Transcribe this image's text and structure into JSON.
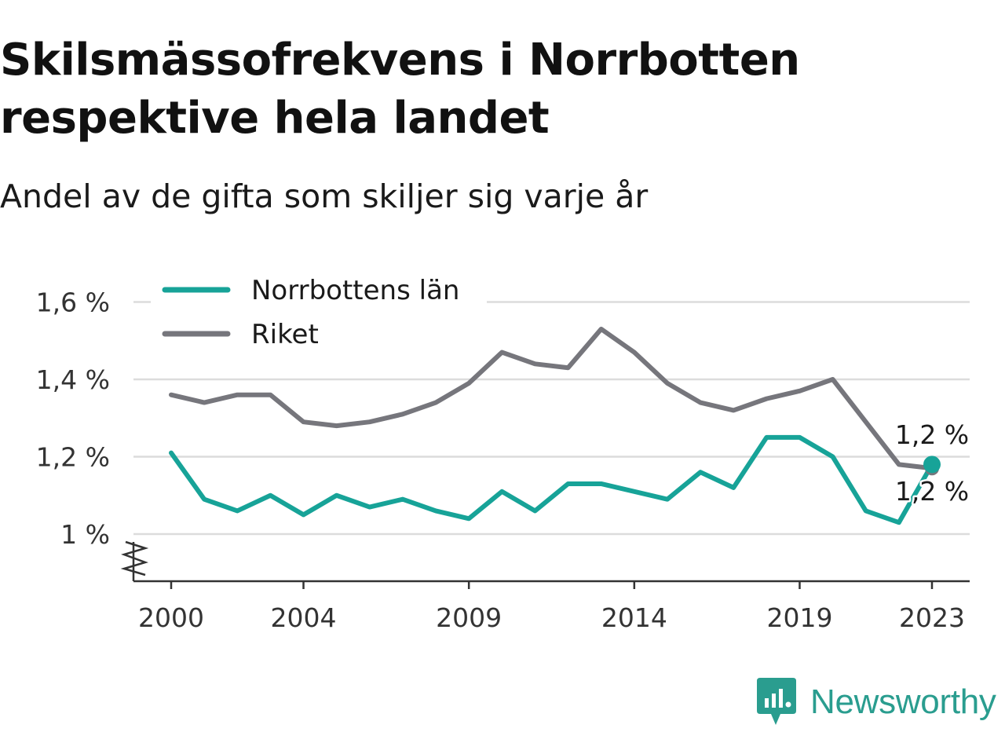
{
  "title_lines": [
    "Skilsmässofrekvens i Norrbotten",
    "respektive hela landet"
  ],
  "subtitle": "Andel av de gifta som skiljer sig varje år",
  "brand": {
    "name": "Newsworthy",
    "icon": "newsworthy-logo-icon",
    "color": "#2a9d8f"
  },
  "chart_data": {
    "type": "line",
    "x": [
      2000,
      2001,
      2002,
      2003,
      2004,
      2005,
      2006,
      2007,
      2008,
      2009,
      2010,
      2011,
      2012,
      2013,
      2014,
      2015,
      2016,
      2017,
      2018,
      2019,
      2020,
      2021,
      2022,
      2023
    ],
    "x_ticks": [
      2000,
      2004,
      2009,
      2014,
      2019,
      2023
    ],
    "x_tick_labels": [
      "2000",
      "2004",
      "2009",
      "2014",
      "2019",
      "2023"
    ],
    "ylim": [
      0.88,
      1.62
    ],
    "y_ticks": [
      1.0,
      1.2,
      1.4,
      1.6
    ],
    "y_tick_labels": [
      "1 %",
      "1,2 %",
      "1,4 %",
      "1,6 %"
    ],
    "grid": true,
    "legend_position": "top-left",
    "series": [
      {
        "name": "Norrbottens län",
        "color": "#17a398",
        "values": [
          1.21,
          1.09,
          1.06,
          1.1,
          1.05,
          1.1,
          1.07,
          1.09,
          1.06,
          1.04,
          1.11,
          1.06,
          1.13,
          1.13,
          1.11,
          1.09,
          1.16,
          1.12,
          1.25,
          1.25,
          1.2,
          1.06,
          1.03,
          1.18
        ],
        "end_label": "1,2 %"
      },
      {
        "name": "Riket",
        "color": "#76767c",
        "values": [
          1.36,
          1.34,
          1.36,
          1.36,
          1.29,
          1.28,
          1.29,
          1.31,
          1.34,
          1.39,
          1.47,
          1.44,
          1.43,
          1.53,
          1.47,
          1.39,
          1.34,
          1.32,
          1.35,
          1.37,
          1.4,
          1.29,
          1.18,
          1.17
        ],
        "end_label": "1,2 %"
      }
    ]
  }
}
